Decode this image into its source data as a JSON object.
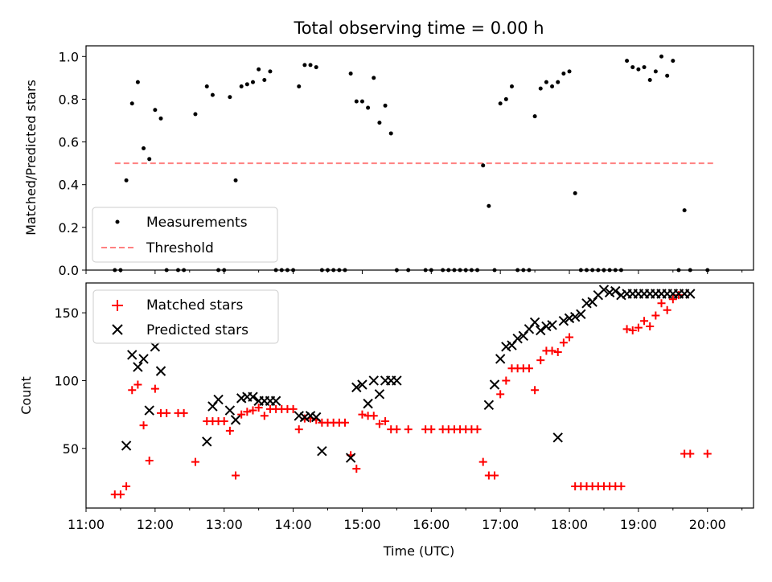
{
  "title": "Total observing time = 0.00 h",
  "chart_data": [
    {
      "type": "scatter",
      "ylabel": "Matched/Predicted stars",
      "ylim": [
        0,
        1.05
      ],
      "yticks": [
        "0.0",
        "0.2",
        "0.4",
        "0.6",
        "0.8",
        "1.0"
      ],
      "ytick_values": [
        0,
        0.2,
        0.4,
        0.6,
        0.8,
        1.0
      ],
      "legend_placement": "lower-left",
      "series": [
        {
          "name": "Measurements",
          "marker": "dot",
          "color": "#000000",
          "x": [
            "11:25",
            "11:30",
            "11:35",
            "11:40",
            "11:45",
            "11:50",
            "11:55",
            "12:00",
            "12:05",
            "12:10",
            "12:20",
            "12:25",
            "12:35",
            "12:45",
            "12:50",
            "12:55",
            "13:00",
            "13:05",
            "13:10",
            "13:15",
            "13:20",
            "13:25",
            "13:30",
            "13:35",
            "13:40",
            "13:45",
            "13:50",
            "13:55",
            "14:00",
            "14:05",
            "14:10",
            "14:15",
            "14:20",
            "14:25",
            "14:30",
            "14:35",
            "14:40",
            "14:45",
            "14:50",
            "14:55",
            "15:00",
            "15:05",
            "15:10",
            "15:15",
            "15:20",
            "15:25",
            "15:30",
            "15:40",
            "15:55",
            "16:00",
            "16:10",
            "16:15",
            "16:20",
            "16:25",
            "16:30",
            "16:35",
            "16:40",
            "16:45",
            "16:50",
            "16:55",
            "17:00",
            "17:05",
            "17:10",
            "17:15",
            "17:20",
            "17:25",
            "17:30",
            "17:35",
            "17:40",
            "17:45",
            "17:50",
            "17:55",
            "18:00",
            "18:05",
            "18:10",
            "18:15",
            "18:20",
            "18:25",
            "18:30",
            "18:35",
            "18:40",
            "18:45",
            "18:50",
            "18:55",
            "19:00",
            "19:05",
            "19:10",
            "19:15",
            "19:20",
            "19:25",
            "19:30",
            "19:35",
            "19:40",
            "19:45",
            "20:00"
          ],
          "y": [
            0.0,
            0.0,
            0.42,
            0.78,
            0.88,
            0.57,
            0.52,
            0.75,
            0.71,
            0.0,
            0.0,
            0.0,
            0.73,
            0.86,
            0.82,
            0.0,
            0.0,
            0.81,
            0.42,
            0.86,
            0.87,
            0.88,
            0.94,
            0.89,
            0.93,
            0.0,
            0.0,
            0.0,
            0.0,
            0.86,
            0.96,
            0.96,
            0.95,
            0.0,
            0.0,
            0.0,
            0.0,
            0.0,
            0.92,
            0.79,
            0.79,
            0.76,
            0.9,
            0.69,
            0.77,
            0.64,
            0.0,
            0.0,
            0.0,
            0.0,
            0.0,
            0.0,
            0.0,
            0.0,
            0.0,
            0.0,
            0.0,
            0.49,
            0.3,
            0.0,
            0.78,
            0.8,
            0.86,
            0.0,
            0.0,
            0.0,
            0.72,
            0.85,
            0.88,
            0.86,
            0.88,
            0.92,
            0.93,
            0.36,
            0.0,
            0.0,
            0.0,
            0.0,
            0.0,
            0.0,
            0.0,
            0.0,
            0.98,
            0.95,
            0.94,
            0.95,
            0.89,
            0.93,
            1.0,
            0.91,
            0.98,
            0.0,
            0.28,
            0.0,
            0.0
          ]
        },
        {
          "name": "Threshold",
          "marker": "dashed-line",
          "color": "#ff8080",
          "x": [
            "11:25",
            "20:05"
          ],
          "y": [
            0.5,
            0.5
          ]
        }
      ]
    },
    {
      "type": "scatter",
      "xlabel": "Time (UTC)",
      "ylabel": "Count",
      "ylim": [
        6,
        172
      ],
      "yticks": [
        "50",
        "100",
        "150"
      ],
      "ytick_values": [
        50,
        100,
        150
      ],
      "xticks": [
        "11:00",
        "12:00",
        "13:00",
        "14:00",
        "15:00",
        "16:00",
        "17:00",
        "18:00",
        "19:00",
        "20:00"
      ],
      "xtick_values": [
        "11:00",
        "12:00",
        "13:00",
        "14:00",
        "15:00",
        "16:00",
        "17:00",
        "18:00",
        "19:00",
        "20:00"
      ],
      "legend_placement": "upper-left",
      "series": [
        {
          "name": "Matched stars",
          "marker": "plus",
          "color": "#ff0000",
          "x": [
            "11:25",
            "11:30",
            "11:35",
            "11:40",
            "11:45",
            "11:50",
            "11:55",
            "12:00",
            "12:05",
            "12:10",
            "12:20",
            "12:25",
            "12:35",
            "12:45",
            "12:50",
            "12:55",
            "13:00",
            "13:05",
            "13:10",
            "13:15",
            "13:20",
            "13:25",
            "13:30",
            "13:35",
            "13:40",
            "13:45",
            "13:50",
            "13:55",
            "14:00",
            "14:05",
            "14:10",
            "14:15",
            "14:20",
            "14:25",
            "14:30",
            "14:35",
            "14:40",
            "14:45",
            "14:50",
            "14:55",
            "15:00",
            "15:05",
            "15:10",
            "15:15",
            "15:20",
            "15:25",
            "15:30",
            "15:40",
            "15:55",
            "16:00",
            "16:10",
            "16:15",
            "16:20",
            "16:25",
            "16:30",
            "16:35",
            "16:40",
            "16:45",
            "16:50",
            "16:55",
            "17:00",
            "17:05",
            "17:10",
            "17:15",
            "17:20",
            "17:25",
            "17:30",
            "17:35",
            "17:40",
            "17:45",
            "17:50",
            "17:55",
            "18:00",
            "18:05",
            "18:10",
            "18:15",
            "18:20",
            "18:25",
            "18:30",
            "18:35",
            "18:40",
            "18:45",
            "18:50",
            "18:55",
            "19:00",
            "19:05",
            "19:10",
            "19:15",
            "19:20",
            "19:25",
            "19:30",
            "19:35",
            "19:40",
            "19:45",
            "20:00"
          ],
          "y": [
            16,
            16,
            22,
            93,
            97,
            67,
            41,
            94,
            76,
            76,
            76,
            76,
            40,
            70,
            70,
            70,
            70,
            63,
            30,
            75,
            77,
            78,
            80,
            74,
            79,
            79,
            79,
            79,
            79,
            64,
            72,
            72,
            71,
            69,
            69,
            69,
            69,
            69,
            45,
            35,
            75,
            74,
            74,
            68,
            70,
            64,
            64,
            64,
            64,
            64,
            64,
            64,
            64,
            64,
            64,
            64,
            64,
            40,
            30,
            30,
            90,
            100,
            109,
            109,
            109,
            109,
            93,
            115,
            122,
            122,
            121,
            128,
            132,
            22,
            22,
            22,
            22,
            22,
            22,
            22,
            22,
            22,
            138,
            137,
            139,
            144,
            140,
            148,
            157,
            152,
            160,
            163,
            46,
            46,
            46
          ]
        },
        {
          "name": "Predicted stars",
          "marker": "x",
          "color": "#000000",
          "x": [
            "11:35",
            "11:40",
            "11:45",
            "11:50",
            "11:55",
            "12:00",
            "12:05",
            "12:45",
            "12:50",
            "12:55",
            "13:05",
            "13:10",
            "13:15",
            "13:20",
            "13:25",
            "13:30",
            "13:35",
            "13:40",
            "13:45",
            "14:05",
            "14:10",
            "14:15",
            "14:20",
            "14:25",
            "14:50",
            "14:55",
            "15:00",
            "15:05",
            "15:10",
            "15:15",
            "15:20",
            "15:25",
            "15:30",
            "16:50",
            "16:55",
            "17:00",
            "17:05",
            "17:10",
            "17:15",
            "17:20",
            "17:25",
            "17:30",
            "17:35",
            "17:40",
            "17:45",
            "17:50",
            "17:55",
            "18:00",
            "18:05",
            "18:10",
            "18:15",
            "18:20",
            "18:25",
            "18:30",
            "18:35",
            "18:40",
            "18:45",
            "18:50",
            "18:55",
            "19:00",
            "19:05",
            "19:10",
            "19:15",
            "19:20",
            "19:25",
            "19:30",
            "19:35",
            "19:40",
            "19:45"
          ],
          "y": [
            52,
            119,
            110,
            116,
            78,
            125,
            107,
            55,
            81,
            86,
            78,
            71,
            87,
            88,
            88,
            85,
            85,
            85,
            85,
            74,
            73,
            74,
            73,
            48,
            43,
            95,
            97,
            83,
            100,
            90,
            100,
            100,
            100,
            82,
            97,
            116,
            125,
            126,
            131,
            133,
            138,
            143,
            137,
            140,
            141,
            58,
            144,
            146,
            147,
            149,
            157,
            158,
            163,
            167,
            165,
            166,
            163,
            164,
            164,
            164,
            164,
            164,
            164,
            164,
            164,
            164,
            164,
            164,
            164
          ]
        }
      ]
    }
  ]
}
